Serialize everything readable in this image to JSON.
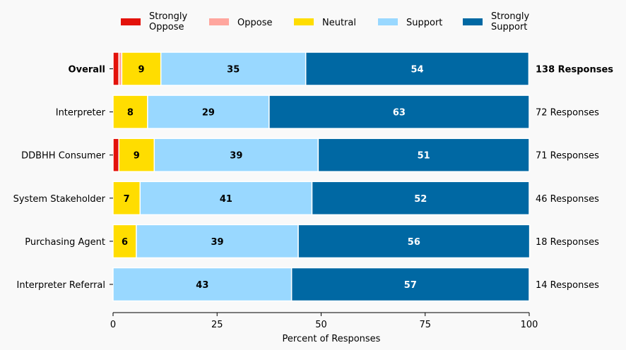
{
  "chart_data": {
    "type": "bar",
    "orientation": "horizontal",
    "stacked": true,
    "title": "",
    "xlabel": "Percent of Responses",
    "ylabel": "",
    "xlim": [
      0,
      100
    ],
    "xticks": [
      0,
      25,
      50,
      75,
      100
    ],
    "grid": false,
    "legend_position": "top",
    "legend": [
      {
        "name": "Strongly\nOppose",
        "color": "#e3120b"
      },
      {
        "name": "Oppose",
        "color": "#ffa69e"
      },
      {
        "name": "Neutral",
        "color": "#ffdd00"
      },
      {
        "name": "Support",
        "color": "#99d8ff"
      },
      {
        "name": "Strongly\nSupport",
        "color": "#0068a3"
      }
    ],
    "categories": [
      "Overall",
      "Interpreter",
      "DDBHH Consumer",
      "System Stakeholder",
      "Purchasing Agent",
      "Interpreter Referral"
    ],
    "bold_categories": [
      "Overall"
    ],
    "series": [
      {
        "name": "Strongly Oppose",
        "color": "#e3120b",
        "label_color": "#ffffff",
        "values": [
          1.4,
          0,
          1.4,
          0,
          0,
          0
        ]
      },
      {
        "name": "Oppose",
        "color": "#ffa69e",
        "label_color": "#000000",
        "values": [
          0.7,
          0,
          0,
          0,
          0,
          0
        ]
      },
      {
        "name": "Neutral",
        "color": "#ffdd00",
        "label_color": "#000000",
        "values": [
          9.4,
          8.3,
          8.5,
          6.5,
          5.6,
          0
        ]
      },
      {
        "name": "Support",
        "color": "#99d8ff",
        "label_color": "#000000",
        "values": [
          34.8,
          29.2,
          39.4,
          41.3,
          38.9,
          42.9
        ]
      },
      {
        "name": "Strongly Support",
        "color": "#0068a3",
        "label_color": "#ffffff",
        "values": [
          53.6,
          62.5,
          50.7,
          52.2,
          55.6,
          57.1
        ]
      }
    ],
    "label_min_value": 5,
    "responses": [
      "138 Responses",
      "72 Responses",
      "71 Responses",
      "46 Responses",
      "18 Responses",
      "14 Responses"
    ]
  }
}
